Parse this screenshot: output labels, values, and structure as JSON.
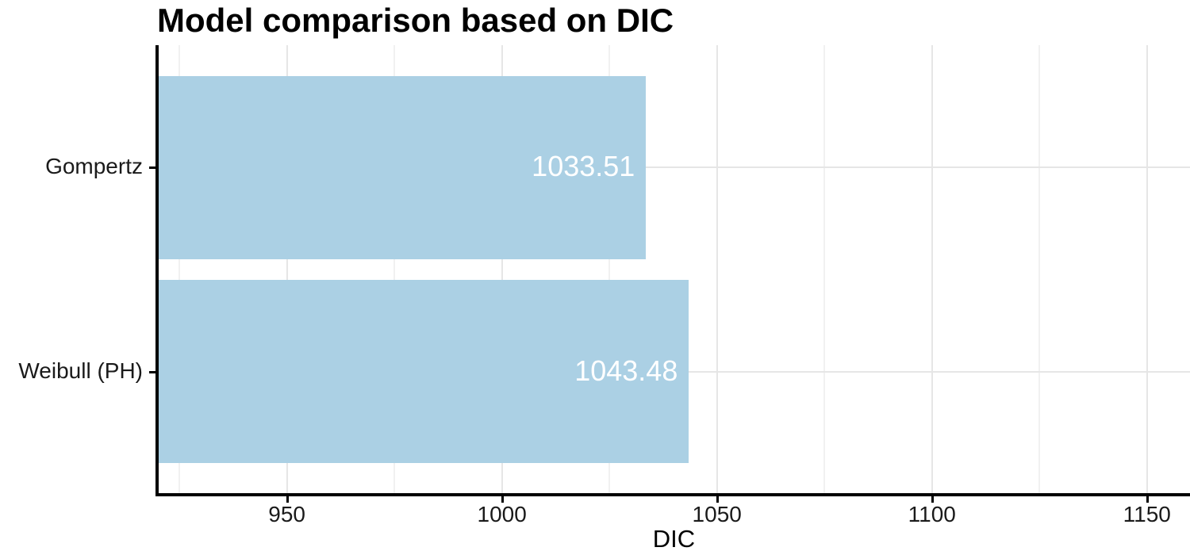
{
  "chart_data": {
    "type": "bar",
    "orientation": "horizontal",
    "title": "Model comparison based on DIC",
    "xlabel": "DIC",
    "ylabel": "",
    "categories": [
      "Gompertz",
      "Weibull (PH)"
    ],
    "values": [
      1033.51,
      1043.48
    ],
    "value_labels": [
      "1033.51",
      "1043.48"
    ],
    "xlim": [
      920,
      1160
    ],
    "x_ticks": [
      950,
      1000,
      1050,
      1100,
      1150
    ],
    "x_tick_labels": [
      "950",
      "1000",
      "1050",
      "1100",
      "1150"
    ],
    "x_minor_ticks": [
      925,
      975,
      1025,
      1075,
      1125
    ],
    "grid": true,
    "legend": false,
    "colors": {
      "bar_fill": "#abd0e4",
      "bar_value_text": "#ffffff",
      "axis_line": "#000000",
      "grid_major": "#e6e6e6",
      "grid_minor": "#f1f1f1",
      "title_text": "#000000",
      "tick_text": "#1a1a1a"
    }
  }
}
